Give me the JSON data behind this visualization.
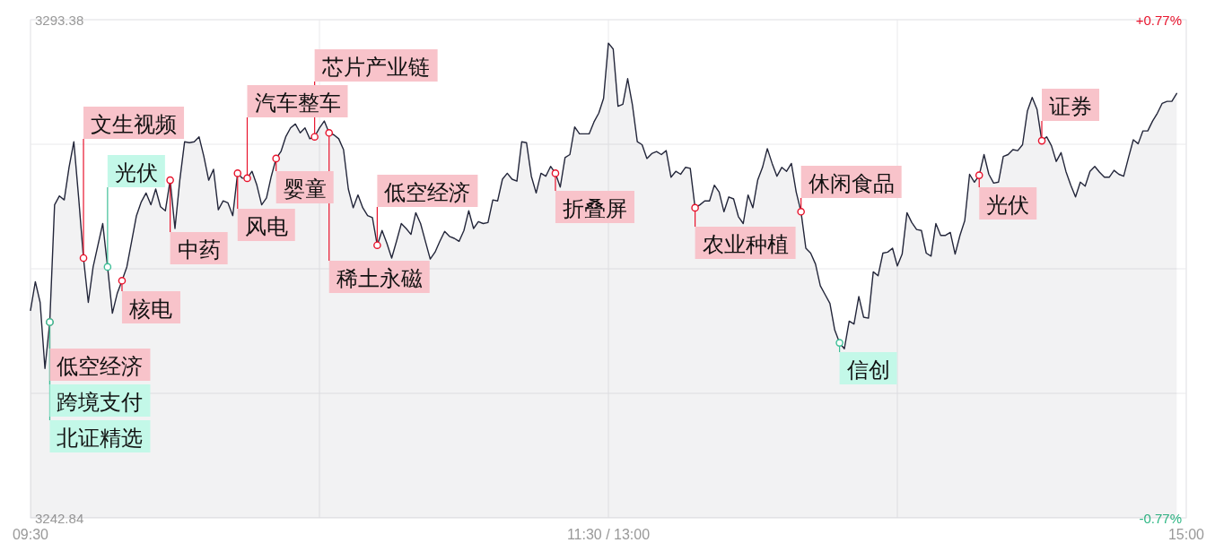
{
  "chart_data": {
    "type": "area",
    "grid": true,
    "categories": [
      "09:30",
      null,
      null,
      null,
      null,
      null,
      null,
      null,
      null,
      null,
      null,
      null,
      null,
      null,
      null,
      null,
      null,
      null,
      null,
      null,
      null,
      null,
      null,
      null,
      null,
      null,
      null,
      null,
      null,
      null,
      null,
      null,
      null,
      null,
      null,
      null,
      null,
      null,
      null,
      null,
      null,
      null,
      null,
      null,
      null,
      null,
      null,
      null,
      null,
      null,
      null,
      null,
      null,
      null,
      null,
      null,
      null,
      null,
      null,
      null,
      null,
      null,
      null,
      null,
      null,
      null,
      null,
      null,
      null,
      null,
      null,
      null,
      null,
      null,
      null,
      null,
      null,
      null,
      null,
      null,
      null,
      null,
      null,
      null,
      null,
      null,
      null,
      null,
      null,
      null,
      null,
      null,
      null,
      null,
      null,
      null,
      null,
      null,
      null,
      null,
      null,
      null,
      null,
      null,
      null,
      null,
      null,
      null,
      null,
      null,
      null,
      null,
      null,
      null,
      null,
      null,
      null,
      null,
      null,
      null,
      "11:30 / 13:00",
      null,
      null,
      null,
      null,
      null,
      null,
      null,
      null,
      null,
      null,
      null,
      null,
      null,
      null,
      null,
      null,
      null,
      null,
      null,
      null,
      null,
      null,
      null,
      null,
      null,
      null,
      null,
      null,
      null,
      null,
      null,
      null,
      null,
      null,
      null,
      null,
      null,
      null,
      null,
      null,
      null,
      null,
      null,
      null,
      null,
      null,
      null,
      null,
      null,
      null,
      null,
      null,
      null,
      null,
      null,
      null,
      null,
      null,
      null,
      null,
      null,
      null,
      null,
      null,
      null,
      null,
      null,
      null,
      null,
      null,
      null,
      null,
      null,
      null,
      null,
      null,
      null,
      null,
      null,
      null,
      null,
      null,
      null,
      null,
      null,
      null,
      null,
      null,
      null,
      null,
      null,
      null,
      null,
      null,
      null,
      null,
      null,
      null,
      null,
      null,
      null,
      null,
      null,
      null,
      null,
      null,
      null,
      null,
      null,
      null,
      null,
      null,
      null,
      null,
      null,
      null,
      null,
      null,
      null,
      "15:00"
    ],
    "ylim": [
      3242.84,
      3293.38
    ],
    "yticks": [
      {
        "value": 3242.84,
        "label": "3242.84"
      },
      {
        "value": 3255.475,
        "label": null
      },
      {
        "value": 3268.11,
        "label": null
      },
      {
        "value": 3280.745,
        "label": null
      },
      {
        "value": 3293.38,
        "label": "3293.38"
      }
    ],
    "y2lim": [
      -0.77,
      0.77
    ],
    "y2ticks": [
      {
        "value": -0.77,
        "label": "-0.77%"
      },
      {
        "value": 0.77,
        "label": "+0.77%"
      }
    ],
    "series": [
      {
        "color": "#23263a",
        "values": [
          3263.9,
          3266.8,
          3264.7,
          3258.0,
          3262.7,
          3274.6,
          3275.5,
          3275.1,
          3278.4,
          3281.0,
          3275.3,
          3269.2,
          3264.7,
          3268.3,
          3270.5,
          3272.7,
          3268.3,
          3263.6,
          3265.6,
          3266.9,
          3268.3,
          3270.9,
          3273.5,
          3274.9,
          3275.8,
          3274.6,
          3276.2,
          3274.4,
          3274.0,
          3277.1,
          3272.2,
          3277.1,
          3281.0,
          3280.9,
          3281.0,
          3281.5,
          3279.5,
          3277.1,
          3278.2,
          3274.1,
          3275.0,
          3274.8,
          3273.5,
          3277.8,
          3277.3,
          3277.3,
          3278.0,
          3276.6,
          3274.6,
          3275.3,
          3277.5,
          3279.3,
          3280.0,
          3281.5,
          3282.4,
          3282.8,
          3281.9,
          3282.4,
          3281.3,
          3281.5,
          3282.4,
          3283.1,
          3281.9,
          3281.7,
          3281.3,
          3280.2,
          3276.2,
          3274.3,
          3275.6,
          3274.3,
          3273.5,
          3273.3,
          3270.5,
          3272.0,
          3270.7,
          3269.2,
          3270.9,
          3272.7,
          3272.2,
          3271.6,
          3273.8,
          3272.7,
          3270.9,
          3269.1,
          3269.8,
          3270.9,
          3271.9,
          3271.4,
          3271.2,
          3270.9,
          3272.0,
          3274.0,
          3272.2,
          3272.9,
          3272.7,
          3272.8,
          3275.1,
          3275.0,
          3277.2,
          3277.8,
          3277.2,
          3277.0,
          3281.0,
          3280.9,
          3277.5,
          3275.8,
          3277.8,
          3277.5,
          3278.5,
          3277.8,
          3276.4,
          3279.4,
          3279.7,
          3282.5,
          3281.8,
          3281.8,
          3281.8,
          3283.0,
          3283.9,
          3285.4,
          3291.0,
          3290.4,
          3284.6,
          3284.8,
          3287.4,
          3284.7,
          3281.0,
          3280.7,
          3279.3,
          3279.8,
          3280.0,
          3279.7,
          3280.1,
          3277.4,
          3278.0,
          3277.7,
          3278.4,
          3278.3,
          3274.3,
          3274.6,
          3275.0,
          3275.0,
          3276.6,
          3275.9,
          3273.9,
          3275.4,
          3275.2,
          3273.4,
          3272.7,
          3275.6,
          3274.3,
          3277.1,
          3278.4,
          3280.3,
          3278.8,
          3277.5,
          3278.4,
          3278.0,
          3278.8,
          3275.9,
          3273.9,
          3270.2,
          3269.7,
          3268.6,
          3266.4,
          3265.5,
          3264.6,
          3261.9,
          3260.6,
          3260.0,
          3262.8,
          3262.5,
          3265.3,
          3263.2,
          3263.1,
          3267.8,
          3267.4,
          3269.7,
          3269.8,
          3270.2,
          3268.4,
          3269.6,
          3273.8,
          3272.8,
          3272.1,
          3272.0,
          3269.7,
          3269.4,
          3272.7,
          3271.5,
          3271.5,
          3271.8,
          3269.6,
          3271.5,
          3273.0,
          3277.7,
          3276.9,
          3277.6,
          3279.7,
          3277.7,
          3276.8,
          3276.9,
          3279.5,
          3279.7,
          3280.2,
          3280.1,
          3280.7,
          3284.1,
          3285.5,
          3284.3,
          3281.1,
          3281.5,
          3280.6,
          3279.0,
          3279.9,
          3278.0,
          3276.6,
          3275.4,
          3276.9,
          3276.5,
          3278.0,
          3278.5,
          3277.9,
          3277.4,
          3277.4,
          3278.1,
          3277.7,
          3277.5,
          3279.4,
          3281.2,
          3280.8,
          3282.1,
          3282.1,
          3283.1,
          3283.9,
          3284.9,
          3285.1,
          3285.1,
          3285.9,
          null,
          null
        ]
      },
      {
        "type": "scatter",
        "marker": "circle",
        "color": "#e8132c",
        "values": [
          null,
          null,
          null,
          null,
          3262.7,
          null,
          null,
          null,
          null,
          null,
          null,
          3269.2,
          null,
          null,
          null,
          null,
          null,
          null,
          null,
          3266.9,
          null,
          null,
          null,
          null,
          null,
          null,
          null,
          null,
          null,
          3277.1,
          null,
          null,
          null,
          null,
          null,
          null,
          null,
          null,
          null,
          null,
          null,
          null,
          null,
          3277.8,
          null,
          3277.3,
          null,
          null,
          null,
          null,
          null,
          3279.3,
          null,
          null,
          null,
          null,
          null,
          null,
          null,
          3281.5,
          null,
          null,
          3281.9,
          null,
          null,
          null,
          null,
          null,
          null,
          null,
          null,
          null,
          3270.5,
          null,
          null,
          null,
          null,
          null,
          null,
          null,
          null,
          null,
          null,
          null,
          null,
          null,
          null,
          null,
          null,
          null,
          null,
          null,
          null,
          null,
          null,
          null,
          null,
          null,
          null,
          null,
          null,
          null,
          null,
          null,
          null,
          null,
          null,
          null,
          null,
          3277.8,
          null,
          null,
          null,
          null,
          null,
          null,
          null,
          null,
          null,
          null,
          null,
          null,
          null,
          null,
          null,
          null,
          null,
          null,
          null,
          null,
          null,
          null,
          null,
          null,
          null,
          null,
          null,
          null,
          3274.3,
          null,
          null,
          null,
          null,
          null,
          null,
          null,
          null,
          null,
          null,
          null,
          null,
          null,
          null,
          null,
          null,
          null,
          null,
          null,
          null,
          null,
          3273.9,
          null,
          null,
          null,
          null,
          null,
          null,
          null,
          null,
          null,
          null,
          null,
          null,
          null,
          null,
          null,
          null,
          null,
          null,
          null,
          null,
          null,
          null,
          null,
          null,
          null,
          null,
          null,
          null,
          null,
          null,
          null,
          null,
          null,
          null,
          null,
          null,
          3277.6,
          null,
          null,
          null,
          null,
          null,
          null,
          null,
          null,
          null,
          null,
          null,
          null,
          3281.1,
          null,
          null,
          null,
          null,
          null,
          null,
          null,
          null,
          null,
          null,
          null,
          null,
          null,
          null,
          null,
          null,
          null,
          null,
          null,
          null,
          null,
          null,
          null,
          null,
          null,
          null,
          null,
          null,
          null,
          null
        ],
        "value_labels": [
          null,
          null,
          null,
          null,
          "低空经济",
          null,
          null,
          null,
          null,
          null,
          null,
          "文生视频",
          null,
          null,
          null,
          null,
          null,
          null,
          null,
          "核电",
          null,
          null,
          null,
          null,
          null,
          null,
          null,
          null,
          null,
          "中药",
          null,
          null,
          null,
          null,
          null,
          null,
          null,
          null,
          null,
          null,
          null,
          null,
          null,
          "风电",
          null,
          "汽车整车",
          null,
          null,
          null,
          null,
          null,
          "婴童",
          null,
          null,
          null,
          null,
          null,
          null,
          null,
          "芯片产业链",
          null,
          null,
          "稀土永磁",
          null,
          null,
          null,
          null,
          null,
          null,
          null,
          null,
          null,
          "低空经济",
          null,
          null,
          null,
          null,
          null,
          null,
          null,
          null,
          null,
          null,
          null,
          null,
          null,
          null,
          null,
          null,
          null,
          null,
          null,
          null,
          null,
          null,
          null,
          null,
          null,
          null,
          null,
          null,
          null,
          null,
          null,
          null,
          null,
          null,
          null,
          null,
          "折叠屏",
          null,
          null,
          null,
          null,
          null,
          null,
          null,
          null,
          null,
          null,
          null,
          null,
          null,
          null,
          null,
          null,
          null,
          null,
          null,
          null,
          null,
          null,
          null,
          null,
          null,
          null,
          null,
          null,
          "农业种植",
          null,
          null,
          null,
          null,
          null,
          null,
          null,
          null,
          null,
          null,
          null,
          null,
          null,
          null,
          null,
          null,
          null,
          null,
          null,
          null,
          null,
          "休闲食品",
          null,
          null,
          null,
          null,
          null,
          null,
          null,
          null,
          null,
          null,
          null,
          null,
          null,
          null,
          null,
          null,
          null,
          null,
          null,
          null,
          null,
          null,
          null,
          null,
          null,
          null,
          null,
          null,
          null,
          null,
          null,
          null,
          null,
          null,
          null,
          null,
          "光伏",
          null,
          null,
          null,
          null,
          null,
          null,
          null,
          null,
          null,
          null,
          null,
          null,
          "证券",
          null,
          null,
          null,
          null,
          null,
          null,
          null,
          null,
          null,
          null,
          null,
          null,
          null,
          null,
          null,
          null,
          null,
          null,
          null,
          null,
          null,
          null,
          null,
          null,
          null,
          null,
          null,
          null,
          null,
          null
        ]
      },
      {
        "type": "scatter",
        "marker": "circle",
        "color": "#3fbf97",
        "values": [
          null,
          null,
          null,
          null,
          3262.7,
          null,
          null,
          null,
          null,
          null,
          null,
          null,
          null,
          null,
          null,
          null,
          3268.3,
          null,
          null,
          null,
          null,
          null,
          null,
          null,
          null,
          null,
          null,
          null,
          null,
          null,
          null,
          null,
          null,
          null,
          null,
          null,
          null,
          null,
          null,
          null,
          null,
          null,
          null,
          null,
          null,
          null,
          null,
          null,
          null,
          null,
          null,
          null,
          null,
          null,
          null,
          null,
          null,
          null,
          null,
          null,
          null,
          null,
          null,
          null,
          null,
          null,
          null,
          null,
          null,
          null,
          null,
          null,
          null,
          null,
          null,
          null,
          null,
          null,
          null,
          null,
          null,
          null,
          null,
          null,
          null,
          null,
          null,
          null,
          null,
          null,
          null,
          null,
          null,
          null,
          null,
          null,
          null,
          null,
          null,
          null,
          null,
          null,
          null,
          null,
          null,
          null,
          null,
          null,
          null,
          null,
          null,
          null,
          null,
          null,
          null,
          null,
          null,
          null,
          null,
          null,
          null,
          null,
          null,
          null,
          null,
          null,
          null,
          null,
          null,
          null,
          null,
          null,
          null,
          null,
          null,
          null,
          null,
          null,
          null,
          null,
          null,
          null,
          null,
          null,
          null,
          null,
          null,
          null,
          null,
          null,
          null,
          null,
          null,
          null,
          null,
          null,
          null,
          null,
          null,
          null,
          null,
          null,
          null,
          null,
          null,
          null,
          null,
          null,
          3260.6,
          null,
          null,
          null,
          null,
          null,
          null,
          null,
          null,
          null,
          null,
          null,
          null,
          null,
          null,
          null,
          null,
          null,
          null,
          null,
          null,
          null,
          null,
          null,
          null,
          null,
          null,
          null,
          null,
          null,
          null,
          null,
          null,
          null,
          null,
          null,
          null,
          null,
          null,
          null,
          null,
          null,
          null,
          null,
          null,
          null,
          null,
          null,
          null,
          null,
          null,
          null,
          null,
          null,
          null,
          null,
          null,
          null,
          null,
          null,
          null,
          null,
          null,
          null,
          null,
          null,
          null,
          null,
          null,
          null,
          null,
          null,
          null
        ],
        "value_labels": [
          null,
          null,
          null,
          null,
          "跨境支付",
          null,
          null,
          null,
          null,
          null,
          null,
          null,
          null,
          null,
          null,
          null,
          "光伏",
          null,
          null,
          null,
          null,
          null,
          null,
          null,
          null,
          null,
          null,
          null,
          null,
          null,
          null,
          null,
          null,
          null,
          null,
          null,
          null,
          null,
          null,
          null,
          null,
          null,
          null,
          null,
          null,
          null,
          null,
          null,
          null,
          null,
          null,
          null,
          null,
          null,
          null,
          null,
          null,
          null,
          null,
          null,
          null,
          null,
          null,
          null,
          null,
          null,
          null,
          null,
          null,
          null,
          null,
          null,
          null,
          null,
          null,
          null,
          null,
          null,
          null,
          null,
          null,
          null,
          null,
          null,
          null,
          null,
          null,
          null,
          null,
          null,
          null,
          null,
          null,
          null,
          null,
          null,
          null,
          null,
          null,
          null,
          null,
          null,
          null,
          null,
          null,
          null,
          null,
          null,
          null,
          null,
          null,
          null,
          null,
          null,
          null,
          null,
          null,
          null,
          null,
          null,
          null,
          null,
          null,
          null,
          null,
          null,
          null,
          null,
          null,
          null,
          null,
          null,
          null,
          null,
          null,
          null,
          null,
          null,
          null,
          null,
          null,
          null,
          null,
          null,
          null,
          null,
          null,
          null,
          null,
          null,
          null,
          null,
          null,
          null,
          null,
          null,
          null,
          null,
          null,
          null,
          null,
          null,
          null,
          null,
          null,
          null,
          null,
          null,
          "信创",
          null,
          null,
          null,
          null,
          null,
          null,
          null,
          null,
          null,
          null,
          null,
          null,
          null,
          null,
          null,
          null,
          null,
          null,
          null,
          null,
          null,
          null,
          null,
          null,
          null,
          null,
          null,
          null,
          null,
          null,
          null,
          null,
          null,
          null,
          null,
          null,
          null,
          null,
          null,
          null,
          null,
          null,
          null,
          null,
          null,
          null,
          null,
          null,
          null,
          null,
          null,
          null,
          null,
          null,
          null,
          null,
          null,
          null,
          null,
          null,
          null,
          null,
          null,
          null,
          null,
          null,
          null,
          null,
          null,
          null,
          null,
          null
        ]
      },
      {
        "type": "scatter",
        "marker": "circle",
        "color": "#3fbf97",
        "values": [
          null,
          null,
          null,
          null,
          3262.7,
          null,
          null,
          null,
          null,
          null,
          null,
          null,
          null,
          null,
          null,
          null,
          null,
          null,
          null,
          null,
          null,
          null,
          null,
          null,
          null,
          null,
          null,
          null,
          null,
          null,
          null,
          null,
          null,
          null,
          null,
          null,
          null,
          null,
          null,
          null,
          null,
          null,
          null,
          null,
          null,
          null,
          null,
          null,
          null,
          null,
          null,
          null,
          null,
          null,
          null,
          null,
          null,
          null,
          null,
          null,
          null,
          null,
          null,
          null,
          null,
          null,
          null,
          null,
          null,
          null,
          null,
          null,
          null,
          null,
          null,
          null,
          null,
          null,
          null,
          null,
          null,
          null,
          null,
          null,
          null,
          null,
          null,
          null,
          null,
          null,
          null,
          null,
          null,
          null,
          null,
          null,
          null,
          null,
          null,
          null,
          null,
          null,
          null,
          null,
          null,
          null,
          null,
          null,
          null,
          null,
          null,
          null,
          null,
          null,
          null,
          null,
          null,
          null,
          null,
          null,
          null,
          null,
          null,
          null,
          null,
          null,
          null,
          null,
          null,
          null,
          null,
          null,
          null,
          null,
          null,
          null,
          null,
          null,
          null,
          null,
          null,
          null,
          null,
          null,
          null,
          null,
          null,
          null,
          null,
          null,
          null,
          null,
          null,
          null,
          null,
          null,
          null,
          null,
          null,
          null,
          null,
          null,
          null,
          null,
          null,
          null,
          null,
          null,
          null,
          null,
          null,
          null,
          null,
          null,
          null,
          null,
          null,
          null,
          null,
          null,
          null,
          null,
          null,
          null,
          null,
          null,
          null,
          null,
          null,
          null,
          null,
          null,
          null,
          null,
          null,
          null,
          null,
          null,
          null,
          null,
          null,
          null,
          null,
          null,
          null,
          null,
          null,
          null,
          null,
          null,
          null,
          null,
          null,
          null,
          null,
          null,
          null,
          null,
          null,
          null,
          null,
          null,
          null,
          null,
          null,
          null,
          null,
          null,
          null,
          null,
          null,
          null,
          null,
          null,
          null,
          null,
          null,
          null,
          null,
          null,
          null
        ],
        "value_labels": [
          null,
          null,
          null,
          null,
          "北证精选",
          null,
          null,
          null,
          null,
          null,
          null,
          null,
          null,
          null,
          null,
          null,
          null,
          null,
          null,
          null,
          null,
          null,
          null,
          null,
          null,
          null,
          null,
          null,
          null,
          null,
          null,
          null,
          null,
          null,
          null,
          null,
          null,
          null,
          null,
          null,
          null,
          null,
          null,
          null,
          null,
          null,
          null,
          null,
          null,
          null,
          null,
          null,
          null,
          null,
          null,
          null,
          null,
          null,
          null,
          null,
          null,
          null,
          null,
          null,
          null,
          null,
          null,
          null,
          null,
          null,
          null,
          null,
          null,
          null,
          null,
          null,
          null,
          null,
          null,
          null,
          null,
          null,
          null,
          null,
          null,
          null,
          null,
          null,
          null,
          null,
          null,
          null,
          null,
          null,
          null,
          null,
          null,
          null,
          null,
          null,
          null,
          null,
          null,
          null,
          null,
          null,
          null,
          null,
          null,
          null,
          null,
          null,
          null,
          null,
          null,
          null,
          null,
          null,
          null,
          null,
          null,
          null,
          null,
          null,
          null,
          null,
          null,
          null,
          null,
          null,
          null,
          null,
          null,
          null,
          null,
          null,
          null,
          null,
          null,
          null,
          null,
          null,
          null,
          null,
          null,
          null,
          null,
          null,
          null,
          null,
          null,
          null,
          null,
          null,
          null,
          null,
          null,
          null,
          null,
          null,
          null,
          null,
          null,
          null,
          null,
          null,
          null,
          null,
          null,
          null,
          null,
          null,
          null,
          null,
          null,
          null,
          null,
          null,
          null,
          null,
          null,
          null,
          null,
          null,
          null,
          null,
          null,
          null,
          null,
          null,
          null,
          null,
          null,
          null,
          null,
          null,
          null,
          null,
          null,
          null,
          null,
          null,
          null,
          null,
          null,
          null,
          null,
          null,
          null,
          null,
          null,
          null,
          null,
          null,
          null,
          null,
          null,
          null,
          null,
          null,
          null,
          null,
          null,
          null,
          null,
          null,
          null,
          null,
          null,
          null,
          null,
          null,
          null,
          null,
          null,
          null,
          null,
          null,
          null,
          null,
          null
        ]
      }
    ]
  }
}
